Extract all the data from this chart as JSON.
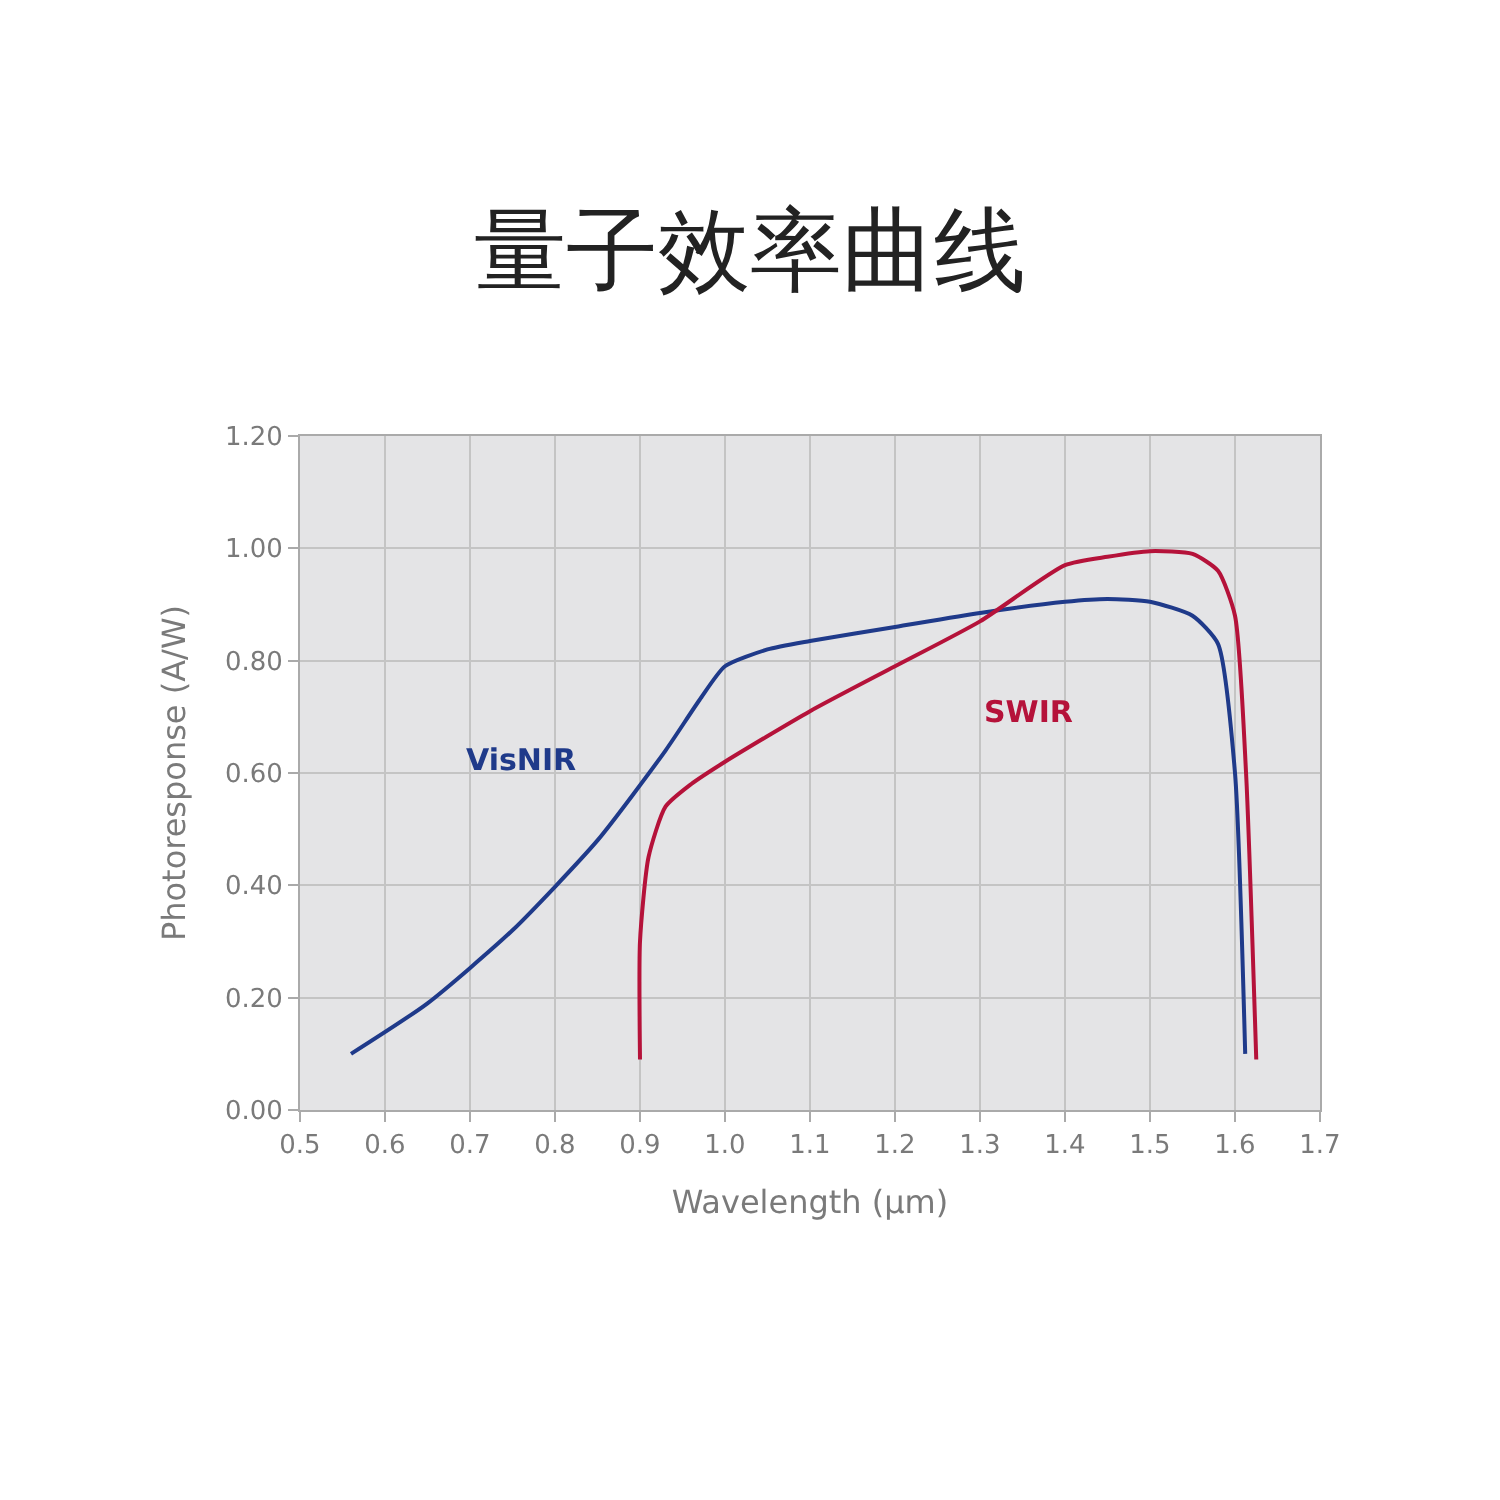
{
  "chart_data": {
    "type": "line",
    "title": "量子效率曲线",
    "xlabel": "Wavelength (μm)",
    "ylabel": "Photoresponse (A/W)",
    "xlim": [
      0.5,
      1.7
    ],
    "ylim": [
      0,
      1.2
    ],
    "xticks": [
      0.5,
      0.6,
      0.7,
      0.8,
      0.9,
      {
        "value": 1.0,
        "label": "1.0"
      },
      1.1,
      1.2,
      1.3,
      1.4,
      1.5,
      1.6,
      1.7
    ],
    "yticks": [
      {
        "value": 0,
        "label": "0.00"
      },
      {
        "value": 0.2,
        "label": "0.20"
      },
      {
        "value": 0.4,
        "label": "0.40"
      },
      {
        "value": 0.6,
        "label": "0.60"
      },
      {
        "value": 0.8,
        "label": "0.80"
      },
      {
        "value": 1.0,
        "label": "1.00"
      },
      {
        "value": 1.2,
        "label": "1.20"
      }
    ],
    "grid": true,
    "legend": false,
    "series": [
      {
        "name": "VisNIR",
        "color": "#1f3a8a",
        "x": [
          0.56,
          0.65,
          0.75,
          0.85,
          0.93,
          0.97,
          1.0,
          1.05,
          1.1,
          1.2,
          1.3,
          1.4,
          1.45,
          1.5,
          1.55,
          1.58,
          1.6,
          1.612
        ],
        "values": [
          0.1,
          0.19,
          0.32,
          0.48,
          0.64,
          0.73,
          0.79,
          0.82,
          0.835,
          0.86,
          0.885,
          0.905,
          0.91,
          0.905,
          0.88,
          0.83,
          0.6,
          0.1
        ]
      },
      {
        "name": "SWIR",
        "color": "#b5123a",
        "x": [
          0.9,
          0.9,
          0.91,
          0.93,
          0.96,
          1.0,
          1.1,
          1.2,
          1.3,
          1.4,
          1.45,
          1.5,
          1.55,
          1.58,
          1.6,
          1.613,
          1.625
        ],
        "values": [
          0.09,
          0.3,
          0.45,
          0.54,
          0.58,
          0.62,
          0.71,
          0.79,
          0.87,
          0.97,
          0.985,
          0.995,
          0.99,
          0.96,
          0.88,
          0.6,
          0.09
        ]
      }
    ]
  }
}
